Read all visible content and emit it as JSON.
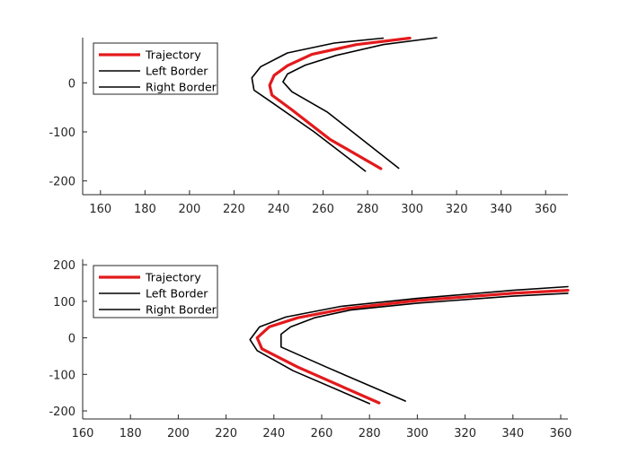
{
  "colors": {
    "trajectory": "#e31a1c",
    "border": "#000000",
    "axis": "#262626",
    "background": "#ffffff"
  },
  "chart_data": [
    {
      "type": "line",
      "title": "",
      "xlabel": "",
      "ylabel": "",
      "xlim": [
        152,
        370
      ],
      "ylim": [
        -228,
        92
      ],
      "xticks": [
        160,
        180,
        200,
        220,
        240,
        260,
        280,
        300,
        320,
        340,
        360
      ],
      "yticks": [
        -200,
        -100,
        0
      ],
      "grid": false,
      "legend": {
        "location": "top-left",
        "entries": [
          "Trajectory",
          "Left Border",
          "Right Border"
        ]
      },
      "series": [
        {
          "name": "Trajectory",
          "color": "#e31a1c",
          "x": [
            299,
            275,
            255,
            244,
            238,
            236,
            237,
            246,
            263,
            286
          ],
          "y": [
            91,
            78,
            58,
            35,
            15,
            -5,
            -25,
            -55,
            -115,
            -175
          ]
        },
        {
          "name": "Left Border",
          "color": "#000000",
          "x": [
            287,
            265,
            244,
            232,
            228,
            229,
            237,
            256,
            279
          ],
          "y": [
            91,
            81,
            61,
            33,
            10,
            -15,
            -40,
            -100,
            -180
          ]
        },
        {
          "name": "Right Border",
          "color": "#000000",
          "x": [
            311,
            287,
            266,
            252,
            244,
            242,
            246,
            262,
            294
          ],
          "y": [
            92,
            78,
            56,
            36,
            18,
            2,
            -18,
            -60,
            -174
          ]
        }
      ]
    },
    {
      "type": "line",
      "title": "",
      "xlabel": "",
      "ylabel": "",
      "xlim": [
        160,
        363
      ],
      "ylim": [
        -222,
        215
      ],
      "xticks": [
        160,
        180,
        200,
        220,
        240,
        260,
        280,
        300,
        320,
        340,
        360
      ],
      "yticks": [
        -200,
        -100,
        0,
        100,
        200
      ],
      "grid": false,
      "legend": {
        "location": "top-left",
        "entries": [
          "Trajectory",
          "Left Border",
          "Right Border"
        ]
      },
      "series": [
        {
          "name": "Trajectory",
          "color": "#e31a1c",
          "x": [
            363,
            340,
            300,
            270,
            250,
            238,
            233,
            235,
            250,
            284
          ],
          "y": [
            130,
            122,
            102,
            80,
            55,
            30,
            0,
            -30,
            -80,
            -178
          ]
        },
        {
          "name": "Left Border",
          "color": "#000000",
          "x": [
            363,
            340,
            300,
            268,
            245,
            234,
            230,
            233,
            248,
            280
          ],
          "y": [
            140,
            130,
            108,
            86,
            57,
            30,
            -5,
            -35,
            -90,
            -180
          ]
        },
        {
          "name": "Right Border",
          "color": "#000000",
          "x": [
            363,
            340,
            300,
            272,
            257,
            247,
            243,
            243,
            262,
            295
          ],
          "y": [
            122,
            114,
            95,
            76,
            55,
            30,
            10,
            -25,
            -80,
            -173
          ]
        }
      ]
    }
  ]
}
